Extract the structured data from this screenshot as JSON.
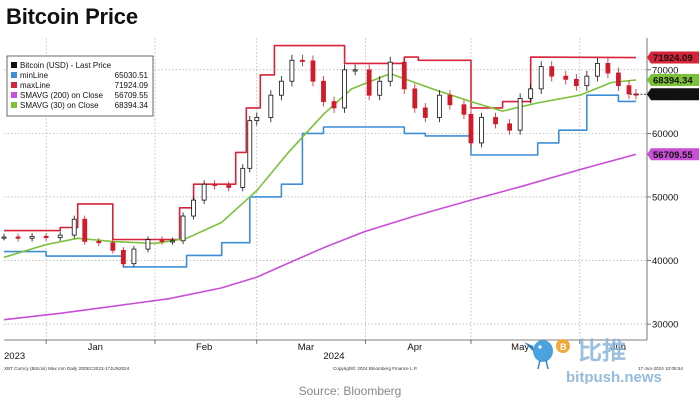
{
  "title": "Bitcoin Price",
  "source": "Source: Bloomberg",
  "footer": {
    "left": "XBT Curncy (Bitcoin) Max mm  Daily 20DEC2023-17JUN2024",
    "center": "Copyright© 2024 Bloomberg Finance L.P.",
    "right": "17-Jun-2024 10:05:54"
  },
  "watermark": {
    "text_cn": "比推",
    "text_en": "bitpush.news"
  },
  "colors": {
    "candle_up": "#111111",
    "candle_down": "#d01c2a",
    "minLine": "#3d8ed6",
    "maxLine": "#d6243a",
    "sma200": "#c94fd6",
    "sma30": "#7bc23a",
    "last": "#111111",
    "grid": "#9a9a9a"
  },
  "legend": {
    "header": "Bitcoin (USD) - Last Price",
    "items": [
      {
        "label": "minLine",
        "value": "65030.51",
        "color": "#3d8ed6"
      },
      {
        "label": "maxLine",
        "value": "71924.09",
        "color": "#d6243a"
      },
      {
        "label": "SMAVG (200)  on Close",
        "value": "56709.55",
        "color": "#c94fd6"
      },
      {
        "label": "SMAVG (30)  on Close",
        "value": "68394.34",
        "color": "#7bc23a"
      }
    ]
  },
  "value_tags": [
    {
      "value": "71924.09",
      "color": "#d6243a",
      "text_color": "#ffffff"
    },
    {
      "value": "68394.34",
      "color": "#7bc23a",
      "text_color": "#111111"
    },
    {
      "value": "66154.25",
      "color": "#111111",
      "text_color": "#ffffff"
    },
    {
      "value": "56709.55",
      "color": "#c94fd6",
      "text_color": "#ffffff"
    }
  ],
  "chart_data": {
    "type": "line",
    "title": "Bitcoin Price",
    "xlabel": "",
    "ylabel": "",
    "x_range": [
      "2023-12-20",
      "2024-06-17"
    ],
    "ylim": [
      27500,
      75000
    ],
    "y_ticks": [
      30000,
      40000,
      50000,
      60000,
      70000
    ],
    "y_tick_labels": [
      "30000",
      "40000",
      "50000",
      "60000",
      "70000"
    ],
    "x_ticks": [
      {
        "date": "2024-01-15",
        "label": "Jan"
      },
      {
        "date": "2024-02-15",
        "label": "Feb"
      },
      {
        "date": "2024-03-15",
        "label": "Mar"
      },
      {
        "date": "2024-04-15",
        "label": "Apr"
      },
      {
        "date": "2024-05-15",
        "label": "May"
      },
      {
        "date": "2024-06-12",
        "label": "Jun"
      }
    ],
    "year_labels": [
      {
        "date": "2023-12-20",
        "label": "2023"
      },
      {
        "date": "2024-03-15",
        "label": "2024"
      }
    ],
    "grid": true,
    "legend_position": "top-left",
    "price": {
      "name": "Bitcoin (USD) - Last Price",
      "style": "candlestick",
      "points": [
        [
          "2023-12-20",
          43700
        ],
        [
          "2023-12-24",
          43500
        ],
        [
          "2023-12-28",
          43800
        ],
        [
          "2024-01-01",
          43600
        ],
        [
          "2024-01-05",
          44000
        ],
        [
          "2024-01-09",
          46500
        ],
        [
          "2024-01-12",
          43000
        ],
        [
          "2024-01-16",
          42800
        ],
        [
          "2024-01-20",
          41600
        ],
        [
          "2024-01-23",
          39500
        ],
        [
          "2024-01-26",
          41800
        ],
        [
          "2024-01-30",
          43300
        ],
        [
          "2024-02-03",
          43000
        ],
        [
          "2024-02-06",
          43100
        ],
        [
          "2024-02-09",
          47000
        ],
        [
          "2024-02-12",
          49500
        ],
        [
          "2024-02-15",
          52000
        ],
        [
          "2024-02-18",
          51800
        ],
        [
          "2024-02-22",
          51500
        ],
        [
          "2024-02-26",
          54500
        ],
        [
          "2024-02-28",
          62000
        ],
        [
          "2024-03-01",
          62500
        ],
        [
          "2024-03-05",
          66000
        ],
        [
          "2024-03-08",
          68200
        ],
        [
          "2024-03-11",
          71500
        ],
        [
          "2024-03-14",
          71400
        ],
        [
          "2024-03-17",
          68200
        ],
        [
          "2024-03-20",
          65000
        ],
        [
          "2024-03-23",
          64000
        ],
        [
          "2024-03-26",
          70000
        ],
        [
          "2024-03-29",
          70000
        ],
        [
          "2024-04-02",
          66000
        ],
        [
          "2024-04-05",
          68200
        ],
        [
          "2024-04-08",
          71200
        ],
        [
          "2024-04-12",
          67000
        ],
        [
          "2024-04-15",
          64000
        ],
        [
          "2024-04-18",
          62500
        ],
        [
          "2024-04-22",
          66000
        ],
        [
          "2024-04-25",
          64500
        ],
        [
          "2024-04-29",
          63000
        ],
        [
          "2024-05-01",
          58500
        ],
        [
          "2024-05-04",
          62500
        ],
        [
          "2024-05-08",
          61500
        ],
        [
          "2024-05-12",
          60500
        ],
        [
          "2024-05-15",
          65500
        ],
        [
          "2024-05-18",
          67000
        ],
        [
          "2024-05-21",
          70500
        ],
        [
          "2024-05-24",
          69000
        ],
        [
          "2024-05-28",
          68500
        ],
        [
          "2024-05-31",
          67500
        ],
        [
          "2024-06-03",
          69000
        ],
        [
          "2024-06-06",
          71000
        ],
        [
          "2024-06-09",
          69500
        ],
        [
          "2024-06-12",
          67500
        ],
        [
          "2024-06-15",
          66200
        ],
        [
          "2024-06-17",
          66154
        ]
      ]
    },
    "series": [
      {
        "name": "minLine",
        "style": "step",
        "points": [
          [
            "2023-12-20",
            41400
          ],
          [
            "2024-01-01",
            41400
          ],
          [
            "2024-01-01",
            40700
          ],
          [
            "2024-01-23",
            40700
          ],
          [
            "2024-01-23",
            39000
          ],
          [
            "2024-02-10",
            39000
          ],
          [
            "2024-02-10",
            40800
          ],
          [
            "2024-02-20",
            40800
          ],
          [
            "2024-02-20",
            42800
          ],
          [
            "2024-02-28",
            42800
          ],
          [
            "2024-02-28",
            50000
          ],
          [
            "2024-03-08",
            50000
          ],
          [
            "2024-03-08",
            52000
          ],
          [
            "2024-03-14",
            52000
          ],
          [
            "2024-03-14",
            60000
          ],
          [
            "2024-03-20",
            60000
          ],
          [
            "2024-03-20",
            61000
          ],
          [
            "2024-04-12",
            61000
          ],
          [
            "2024-04-12",
            60000
          ],
          [
            "2024-04-18",
            60000
          ],
          [
            "2024-04-18",
            59600
          ],
          [
            "2024-05-01",
            59600
          ],
          [
            "2024-05-01",
            56600
          ],
          [
            "2024-05-20",
            56600
          ],
          [
            "2024-05-20",
            58500
          ],
          [
            "2024-05-26",
            58500
          ],
          [
            "2024-05-26",
            60500
          ],
          [
            "2024-06-03",
            60500
          ],
          [
            "2024-06-03",
            66000
          ],
          [
            "2024-06-12",
            66000
          ],
          [
            "2024-06-12",
            65030.51
          ],
          [
            "2024-06-17",
            65030.51
          ]
        ]
      },
      {
        "name": "maxLine",
        "style": "step",
        "points": [
          [
            "2023-12-20",
            44700
          ],
          [
            "2024-01-05",
            44700
          ],
          [
            "2024-01-05",
            45200
          ],
          [
            "2024-01-10",
            45200
          ],
          [
            "2024-01-10",
            48900
          ],
          [
            "2024-01-20",
            48900
          ],
          [
            "2024-01-20",
            43300
          ],
          [
            "2024-02-08",
            43300
          ],
          [
            "2024-02-08",
            48300
          ],
          [
            "2024-02-12",
            48300
          ],
          [
            "2024-02-12",
            52000
          ],
          [
            "2024-02-24",
            52000
          ],
          [
            "2024-02-24",
            57000
          ],
          [
            "2024-02-27",
            57000
          ],
          [
            "2024-02-27",
            64000
          ],
          [
            "2024-03-02",
            64000
          ],
          [
            "2024-03-02",
            69200
          ],
          [
            "2024-03-06",
            69200
          ],
          [
            "2024-03-06",
            73800
          ],
          [
            "2024-03-26",
            73800
          ],
          [
            "2024-03-26",
            71000
          ],
          [
            "2024-04-12",
            71000
          ],
          [
            "2024-04-12",
            72000
          ],
          [
            "2024-04-16",
            72000
          ],
          [
            "2024-04-16",
            71500
          ],
          [
            "2024-05-01",
            71500
          ],
          [
            "2024-05-01",
            64000
          ],
          [
            "2024-05-10",
            64000
          ],
          [
            "2024-05-10",
            65000
          ],
          [
            "2024-05-18",
            65000
          ],
          [
            "2024-05-18",
            72000
          ],
          [
            "2024-06-17",
            71924.09
          ]
        ]
      },
      {
        "name": "SMAVG (200)  on Close",
        "style": "line",
        "points": [
          [
            "2023-12-20",
            30700
          ],
          [
            "2024-01-05",
            31700
          ],
          [
            "2024-01-20",
            32800
          ],
          [
            "2024-02-05",
            34000
          ],
          [
            "2024-02-20",
            35700
          ],
          [
            "2024-03-01",
            37400
          ],
          [
            "2024-03-10",
            39600
          ],
          [
            "2024-03-20",
            42000
          ],
          [
            "2024-04-01",
            44600
          ],
          [
            "2024-04-15",
            47000
          ],
          [
            "2024-05-01",
            49500
          ],
          [
            "2024-05-15",
            51600
          ],
          [
            "2024-06-01",
            54300
          ],
          [
            "2024-06-17",
            56709.55
          ]
        ]
      },
      {
        "name": "SMAVG (30)  on Close",
        "style": "line",
        "points": [
          [
            "2023-12-20",
            40500
          ],
          [
            "2024-01-01",
            42500
          ],
          [
            "2024-01-10",
            43500
          ],
          [
            "2024-01-20",
            43000
          ],
          [
            "2024-02-01",
            42700
          ],
          [
            "2024-02-10",
            43500
          ],
          [
            "2024-02-20",
            46000
          ],
          [
            "2024-03-01",
            51000
          ],
          [
            "2024-03-10",
            57000
          ],
          [
            "2024-03-20",
            63000
          ],
          [
            "2024-03-28",
            67000
          ],
          [
            "2024-04-08",
            69400
          ],
          [
            "2024-04-20",
            67000
          ],
          [
            "2024-05-01",
            65000
          ],
          [
            "2024-05-10",
            63500
          ],
          [
            "2024-05-20",
            64800
          ],
          [
            "2024-06-01",
            66000
          ],
          [
            "2024-06-10",
            68000
          ],
          [
            "2024-06-17",
            68394.34
          ]
        ]
      }
    ]
  }
}
